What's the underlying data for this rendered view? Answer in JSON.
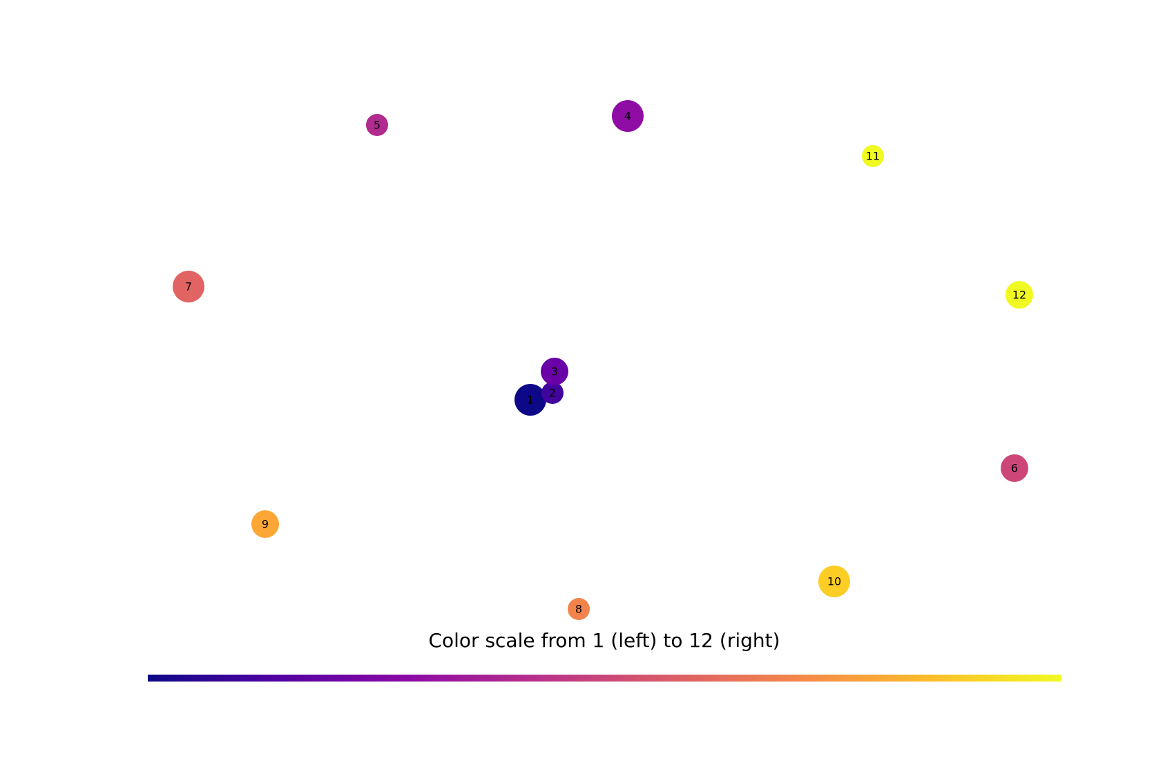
{
  "caption": "Color scale from 1 (left) to 12 (right)",
  "colormap": {
    "name": "plasma",
    "stops": [
      "#0d0887",
      "#5302a3",
      "#8b0aa5",
      "#b83289",
      "#db5c68",
      "#f48849",
      "#febd2a",
      "#f0f921"
    ]
  },
  "nodes": [
    {
      "label": "1",
      "color": "#0d0887"
    },
    {
      "label": "2",
      "color": "#41049d"
    },
    {
      "label": "3",
      "color": "#6a00a8"
    },
    {
      "label": "4",
      "color": "#8f0da4"
    },
    {
      "label": "5",
      "color": "#b12a90"
    },
    {
      "label": "6",
      "color": "#cc4778"
    },
    {
      "label": "7",
      "color": "#e16462"
    },
    {
      "label": "8",
      "color": "#f2844b"
    },
    {
      "label": "9",
      "color": "#fca636"
    },
    {
      "label": "10",
      "color": "#fcce25"
    },
    {
      "label": "11",
      "color": "#f0f921"
    },
    {
      "label": "12",
      "color": "#f0f921"
    }
  ],
  "edges": [
    {
      "from": "3",
      "to": "2",
      "color": "#b12a90"
    }
  ]
}
